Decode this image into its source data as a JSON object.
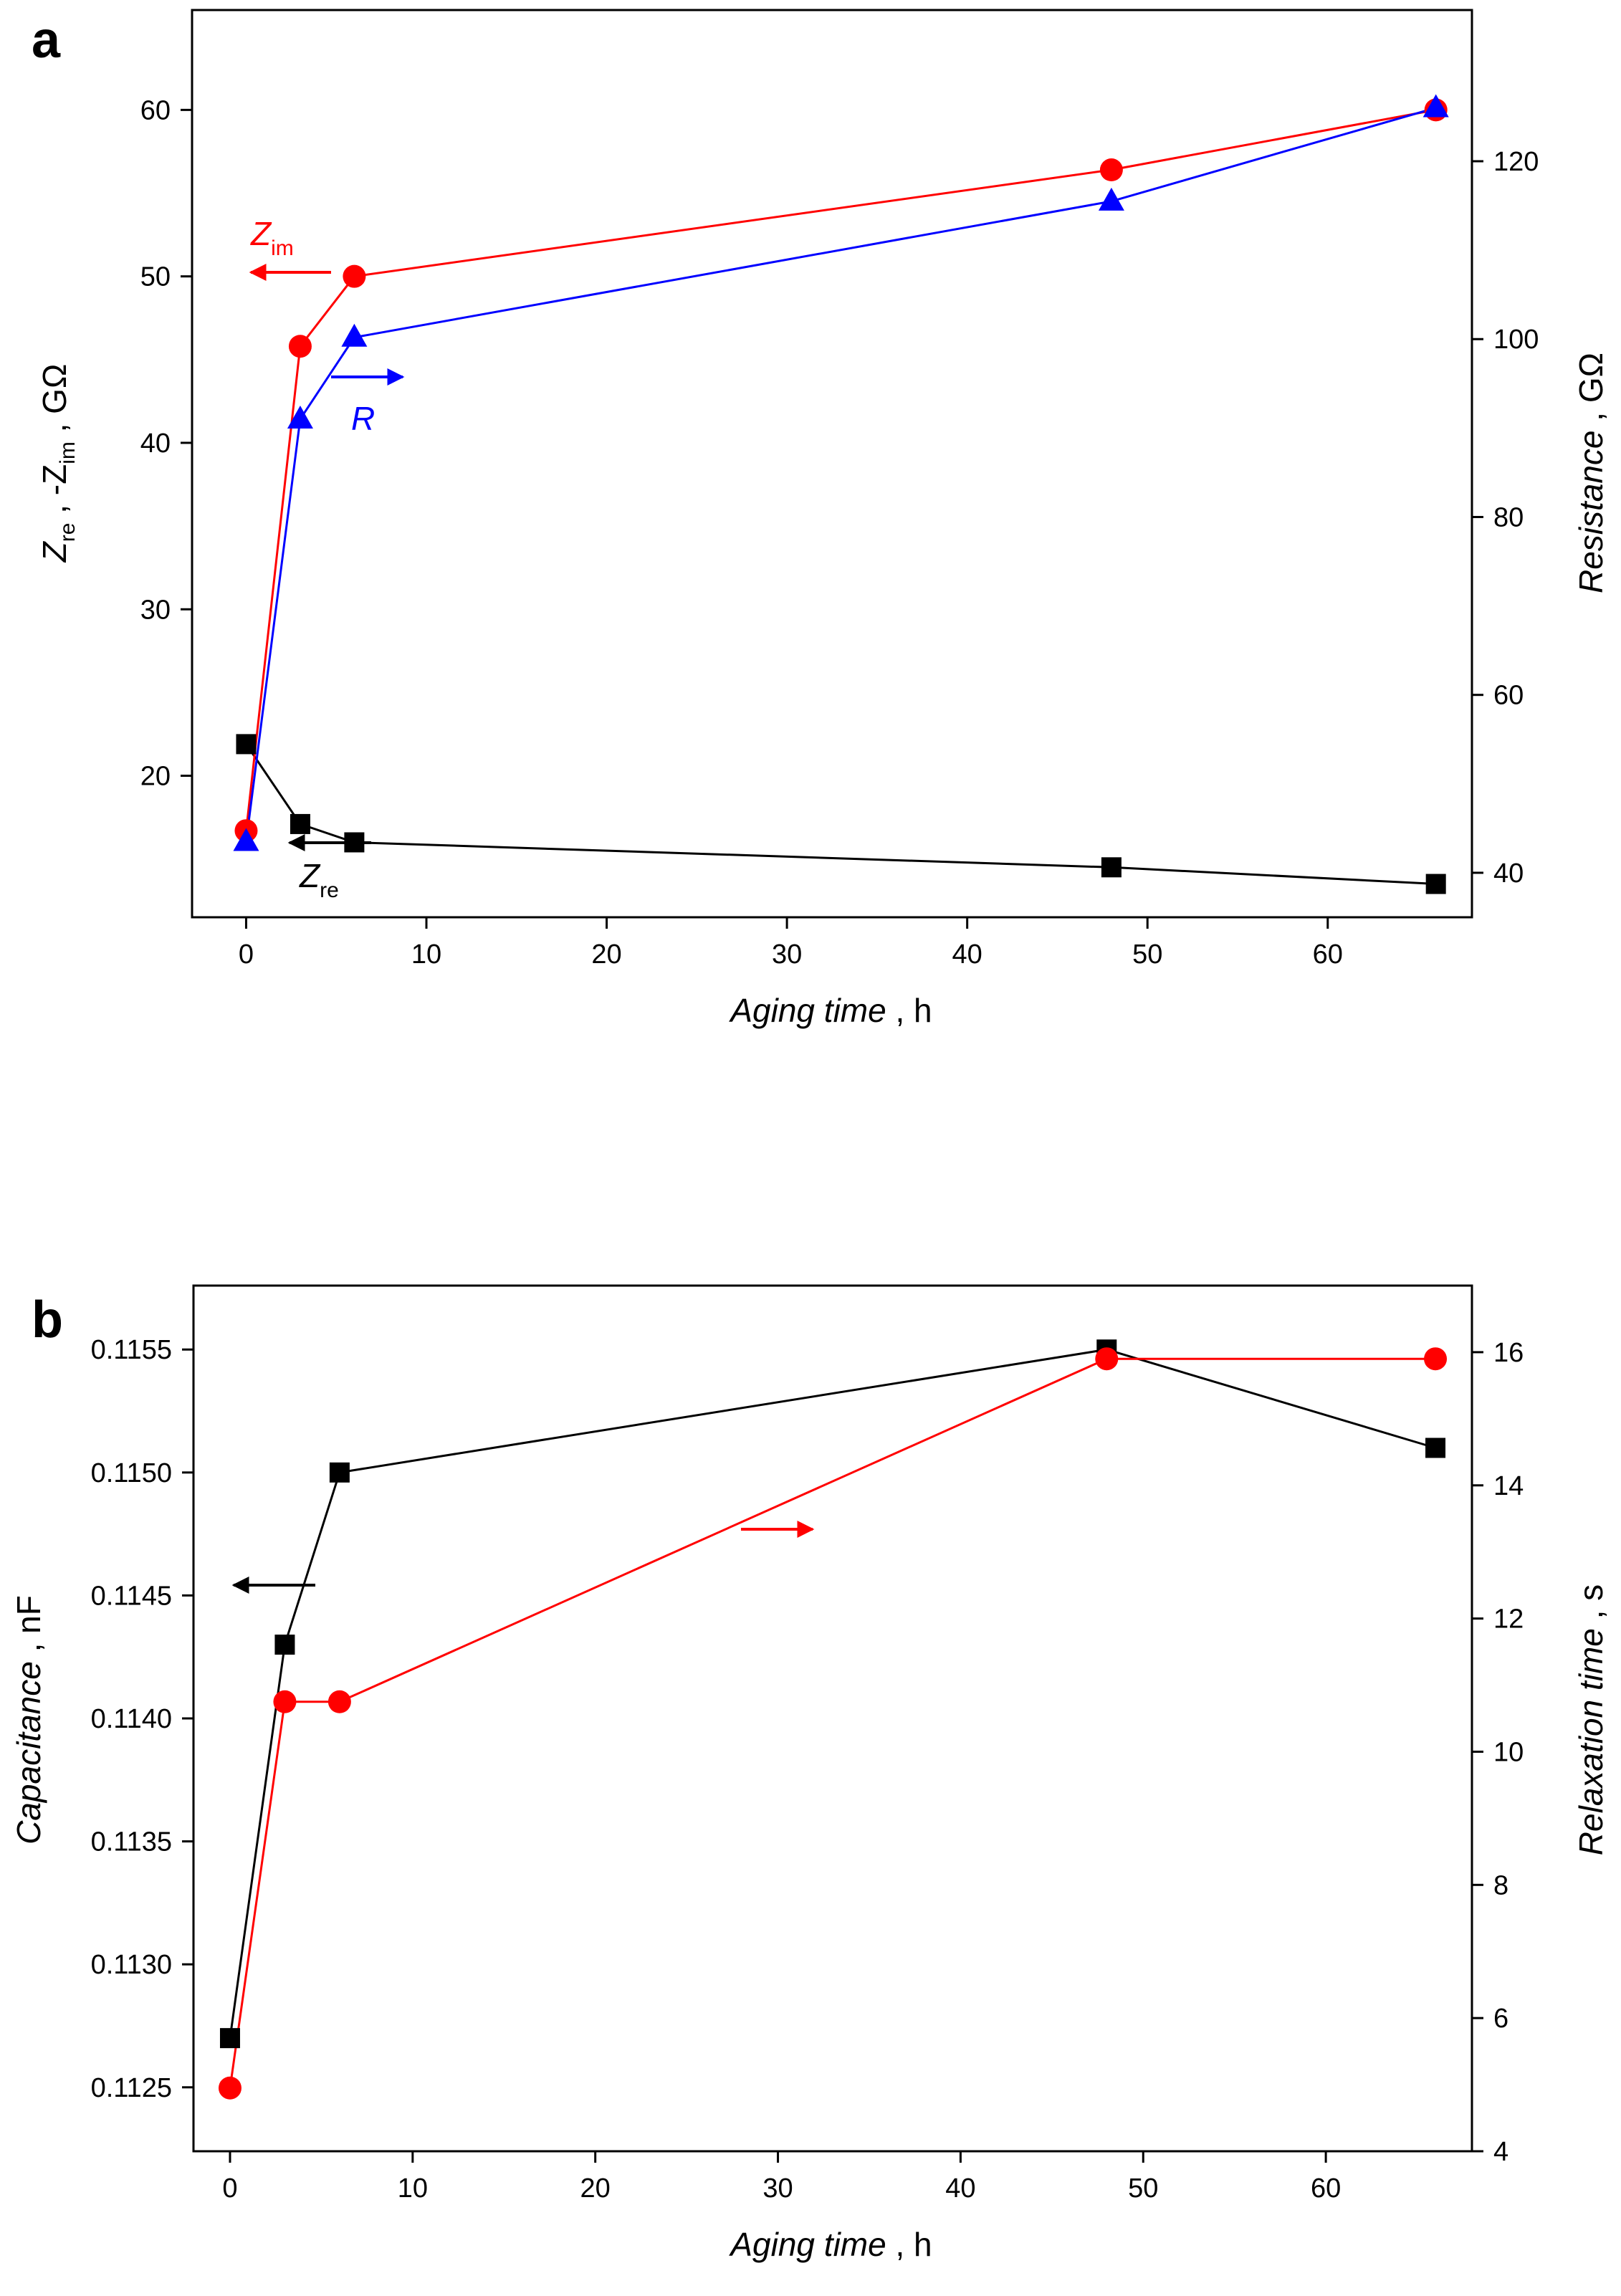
{
  "chart_data": [
    {
      "type": "line",
      "panel_label": "a",
      "x_axis": {
        "label": "Aging time",
        "unit": "h",
        "lim": [
          -3,
          68
        ],
        "ticks": [
          0,
          10,
          20,
          30,
          40,
          50,
          60
        ]
      },
      "y_left": {
        "label_parts": [
          "Z",
          "re",
          " , -Z",
          "im",
          " ,  GΩ"
        ],
        "lim": [
          11.5,
          66
        ],
        "ticks": [
          20,
          30,
          40,
          50,
          60
        ]
      },
      "y_right": {
        "label": "Resistance",
        "unit": "GΩ",
        "lim": [
          35,
          137
        ],
        "ticks": [
          40,
          60,
          80,
          100,
          120
        ]
      },
      "series": [
        {
          "name": "Zre",
          "axis": "left",
          "marker": "square",
          "color": "#000000",
          "x": [
            0,
            3,
            6,
            48,
            66
          ],
          "y": [
            21.9,
            17.1,
            16.0,
            14.5,
            13.5
          ]
        },
        {
          "name": "Zim",
          "axis": "left",
          "marker": "circle",
          "color": "#ff0000",
          "x": [
            0,
            3,
            6,
            48,
            66
          ],
          "y": [
            16.7,
            45.8,
            50.0,
            56.4,
            60.0
          ]
        },
        {
          "name": "R",
          "axis": "right",
          "marker": "triangle",
          "color": "#0000ff",
          "x": [
            0,
            3,
            6,
            48,
            66
          ],
          "y": [
            43.5,
            91.0,
            100.2,
            115.5,
            126.0
          ]
        }
      ],
      "annotations": [
        {
          "text": "Z",
          "sub": "im",
          "color": "#ff0000",
          "arrow": "left"
        },
        {
          "text": "R",
          "sub": "",
          "color": "#0000ff",
          "arrow": "right"
        },
        {
          "text": "Z",
          "sub": "re",
          "color": "#000000",
          "arrow": "left"
        }
      ]
    },
    {
      "type": "line",
      "panel_label": "b",
      "x_axis": {
        "label": "Aging time",
        "unit": "h",
        "lim": [
          -2,
          68
        ],
        "ticks": [
          0,
          10,
          20,
          30,
          40,
          50,
          60
        ]
      },
      "y_left": {
        "label": "Capacitance",
        "unit": "nF",
        "lim": [
          0.11224,
          0.11576
        ],
        "ticks": [
          0.1125,
          0.113,
          0.1135,
          0.114,
          0.1145,
          0.115,
          0.1155
        ],
        "tick_labels": [
          "0.1125",
          "0.1130",
          "0.1135",
          "0.1140",
          "0.1145",
          "0.1150",
          "0.1155"
        ]
      },
      "y_right": {
        "label": "Relaxation time",
        "unit": "s",
        "lim": [
          4,
          17
        ],
        "ticks": [
          4,
          6,
          8,
          10,
          12,
          14,
          16
        ]
      },
      "series": [
        {
          "name": "Capacitance",
          "axis": "left",
          "marker": "square",
          "color": "#000000",
          "x": [
            0,
            3,
            6,
            48,
            66
          ],
          "y": [
            0.1127,
            0.1143,
            0.115,
            0.1155,
            0.1151
          ]
        },
        {
          "name": "Relaxation time",
          "axis": "right",
          "marker": "circle",
          "color": "#ff0000",
          "x": [
            0,
            3,
            6,
            48,
            66
          ],
          "y": [
            4.95,
            10.75,
            10.75,
            15.9,
            15.9
          ]
        }
      ],
      "annotations": [
        {
          "color": "#000000",
          "arrow": "left"
        },
        {
          "color": "#ff0000",
          "arrow": "right"
        }
      ]
    }
  ]
}
